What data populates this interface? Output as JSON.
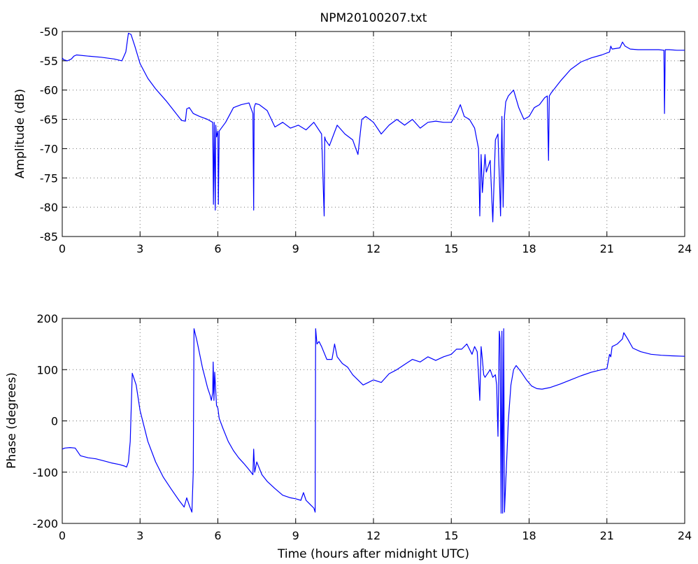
{
  "chart_data": [
    {
      "type": "line",
      "title": "NPM20100207.txt",
      "xlabel": "",
      "ylabel": "Amplitude (dB)",
      "xlim": [
        0,
        24
      ],
      "ylim": [
        -85,
        -50
      ],
      "xticks": [
        0,
        3,
        6,
        9,
        12,
        15,
        18,
        21,
        24
      ],
      "xtick_labels": [
        "0",
        "3",
        "6",
        "9",
        "12",
        "15",
        "18",
        "21",
        "24"
      ],
      "yticks": [
        -50,
        -55,
        -60,
        -65,
        -70,
        -75,
        -80,
        -85
      ],
      "ytick_labels": [
        "-50",
        "-55",
        "-60",
        "-65",
        "-70",
        "-75",
        "-80",
        "-85"
      ],
      "grid": true,
      "color": "#0000ff",
      "series": [
        {
          "x": [
            0,
            0.05,
            0.2,
            0.35,
            0.45,
            0.55,
            1.0,
            1.5,
            2.0,
            2.3,
            2.45,
            2.55,
            2.65,
            2.8,
            3.0,
            3.3,
            3.6,
            4.0,
            4.3,
            4.6,
            4.75,
            4.8,
            4.9,
            5.05,
            5.3,
            5.6,
            5.8,
            5.83,
            5.86,
            5.9,
            5.92,
            5.95,
            6.0,
            6.02,
            6.05,
            6.1,
            6.3,
            6.6,
            6.9,
            7.2,
            7.35,
            7.38,
            7.4,
            7.45,
            7.6,
            7.9,
            8.2,
            8.5,
            8.8,
            9.1,
            9.4,
            9.7,
            10.0,
            10.1,
            10.12,
            10.15,
            10.3,
            10.6,
            10.9,
            11.2,
            11.4,
            11.55,
            11.7,
            12.0,
            12.3,
            12.6,
            12.9,
            13.2,
            13.5,
            13.8,
            14.1,
            14.4,
            14.7,
            15.0,
            15.2,
            15.35,
            15.5,
            15.7,
            15.9,
            16.05,
            16.1,
            16.15,
            16.2,
            16.3,
            16.35,
            16.5,
            16.6,
            16.7,
            16.8,
            16.9,
            16.95,
            17.0,
            17.05,
            17.1,
            17.2,
            17.4,
            17.6,
            17.8,
            18.0,
            18.2,
            18.4,
            18.6,
            18.7,
            18.75,
            18.78,
            18.85,
            19.2,
            19.6,
            20.0,
            20.4,
            20.8,
            21.1,
            21.15,
            21.2,
            21.5,
            21.6,
            21.7,
            21.9,
            22.2,
            22.6,
            23.0,
            23.2,
            23.22,
            23.25,
            23.4,
            23.7,
            24.0
          ],
          "y": [
            -54.5,
            -54.8,
            -55.0,
            -54.7,
            -54.2,
            -54.0,
            -54.2,
            -54.4,
            -54.7,
            -55.0,
            -53.5,
            -50.3,
            -50.5,
            -52.5,
            -55.5,
            -58.0,
            -59.8,
            -61.8,
            -63.5,
            -65.2,
            -65.3,
            -63.2,
            -63.0,
            -64.0,
            -64.5,
            -65.0,
            -65.5,
            -79.5,
            -65.5,
            -80.5,
            -66.0,
            -68.0,
            -67.0,
            -79.5,
            -67.0,
            -66.7,
            -65.5,
            -63.0,
            -62.5,
            -62.2,
            -64.0,
            -80.5,
            -63.0,
            -62.3,
            -62.5,
            -63.5,
            -66.3,
            -65.5,
            -66.5,
            -66.0,
            -66.8,
            -65.5,
            -67.5,
            -81.5,
            -68.0,
            -68.5,
            -69.5,
            -66.0,
            -67.5,
            -68.5,
            -71.0,
            -65.0,
            -64.5,
            -65.5,
            -67.5,
            -66.0,
            -65.0,
            -66.0,
            -65.0,
            -66.5,
            -65.5,
            -65.3,
            -65.5,
            -65.5,
            -64.0,
            -62.5,
            -64.5,
            -65.0,
            -66.5,
            -70.0,
            -81.5,
            -71.0,
            -77.5,
            -71.0,
            -74.0,
            -72.0,
            -82.5,
            -68.5,
            -67.5,
            -81.5,
            -64.5,
            -80.0,
            -64.5,
            -62.0,
            -61.0,
            -60.0,
            -63.0,
            -65.0,
            -64.5,
            -63.0,
            -62.5,
            -61.3,
            -61.0,
            -72.0,
            -61.0,
            -60.5,
            -58.5,
            -56.5,
            -55.2,
            -54.5,
            -54.0,
            -53.5,
            -52.5,
            -53.0,
            -52.8,
            -51.8,
            -52.5,
            -53.0,
            -53.1,
            -53.1,
            -53.1,
            -53.2,
            -64.0,
            -53.1,
            -53.1,
            -53.2,
            -53.2
          ]
        }
      ]
    },
    {
      "type": "line",
      "title": "",
      "xlabel": "Time (hours after midnight UTC)",
      "ylabel": "Phase (degrees)",
      "xlim": [
        0,
        24
      ],
      "ylim": [
        -200,
        200
      ],
      "xticks": [
        0,
        3,
        6,
        9,
        12,
        15,
        18,
        21,
        24
      ],
      "xtick_labels": [
        "0",
        "3",
        "6",
        "9",
        "12",
        "15",
        "18",
        "21",
        "24"
      ],
      "yticks": [
        200,
        100,
        0,
        -100,
        -200
      ],
      "ytick_labels": [
        "200",
        "100",
        "0",
        "-100",
        "-200"
      ],
      "grid": true,
      "color": "#0000ff",
      "series": [
        {
          "x": [
            0,
            0.1,
            0.3,
            0.5,
            0.7,
            1.0,
            1.3,
            1.6,
            1.9,
            2.2,
            2.4,
            2.48,
            2.55,
            2.62,
            2.7,
            2.85,
            3.0,
            3.3,
            3.6,
            3.9,
            4.2,
            4.5,
            4.7,
            4.8,
            4.9,
            5.0,
            5.05,
            5.08,
            5.2,
            5.4,
            5.6,
            5.7,
            5.75,
            5.8,
            5.82,
            5.85,
            5.88,
            5.95,
            6.0,
            6.05,
            6.2,
            6.4,
            6.6,
            6.8,
            7.0,
            7.2,
            7.35,
            7.38,
            7.42,
            7.5,
            7.7,
            7.9,
            8.2,
            8.5,
            8.8,
            9.0,
            9.2,
            9.3,
            9.4,
            9.5,
            9.6,
            9.7,
            9.75,
            9.77,
            9.82,
            9.9,
            10.0,
            10.2,
            10.4,
            10.5,
            10.6,
            10.8,
            11.0,
            11.2,
            11.4,
            11.6,
            11.8,
            12.0,
            12.3,
            12.6,
            12.9,
            13.2,
            13.5,
            13.8,
            14.1,
            14.4,
            14.7,
            15.0,
            15.2,
            15.4,
            15.6,
            15.8,
            15.9,
            16.0,
            16.05,
            16.1,
            16.15,
            16.2,
            16.25,
            16.3,
            16.5,
            16.6,
            16.7,
            16.75,
            16.8,
            16.85,
            16.88,
            16.92,
            16.95,
            16.98,
            17.02,
            17.05,
            17.1,
            17.15,
            17.2,
            17.3,
            17.4,
            17.5,
            17.7,
            17.9,
            18.1,
            18.3,
            18.5,
            18.8,
            19.2,
            19.6,
            20.0,
            20.4,
            20.8,
            21.0,
            21.1,
            21.15,
            21.2,
            21.4,
            21.6,
            21.65,
            21.8,
            22.0,
            22.3,
            22.7,
            23.1,
            23.5,
            24.0
          ],
          "y": [
            -55,
            -53,
            -52,
            -53,
            -68,
            -72,
            -74,
            -78,
            -82,
            -85,
            -88,
            -90,
            -80,
            -40,
            93,
            70,
            20,
            -40,
            -80,
            -110,
            -133,
            -155,
            -168,
            -150,
            -165,
            -178,
            -100,
            180,
            155,
            105,
            65,
            50,
            40,
            55,
            115,
            40,
            95,
            30,
            25,
            5,
            -15,
            -40,
            -58,
            -72,
            -83,
            -95,
            -105,
            -55,
            -100,
            -80,
            -105,
            -118,
            -132,
            -145,
            -150,
            -152,
            -155,
            -140,
            -155,
            -160,
            -165,
            -170,
            -178,
            180,
            150,
            155,
            145,
            120,
            120,
            150,
            125,
            112,
            105,
            90,
            80,
            70,
            75,
            80,
            75,
            92,
            100,
            110,
            120,
            115,
            125,
            118,
            125,
            130,
            140,
            140,
            150,
            130,
            145,
            135,
            90,
            40,
            145,
            120,
            90,
            85,
            100,
            85,
            90,
            70,
            -30,
            175,
            160,
            -180,
            175,
            -180,
            180,
            -178,
            -120,
            -60,
            0,
            70,
            100,
            108,
            95,
            80,
            68,
            63,
            62,
            65,
            72,
            80,
            88,
            95,
            100,
            102,
            130,
            125,
            145,
            150,
            160,
            172,
            160,
            142,
            135,
            130,
            128,
            127,
            126
          ]
        }
      ]
    }
  ]
}
